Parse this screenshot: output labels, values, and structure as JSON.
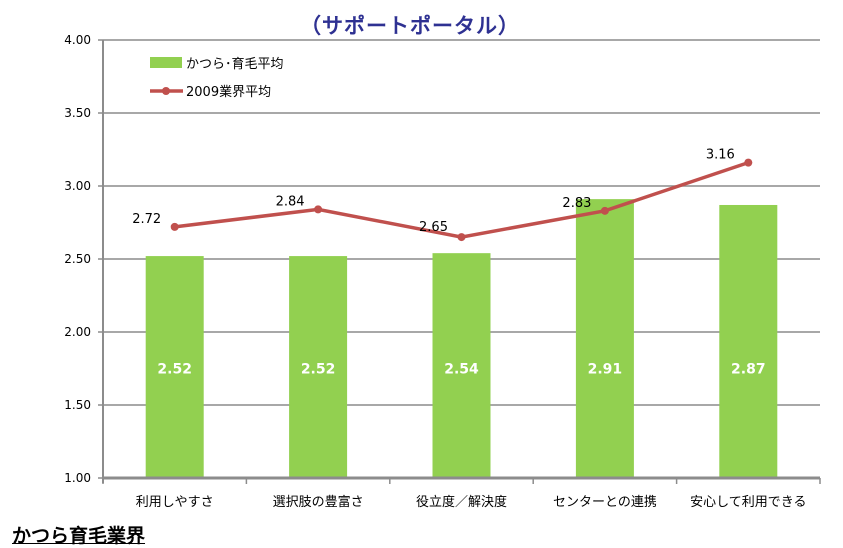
{
  "chart_data": {
    "type": "bar",
    "title": "（サポートポータル）",
    "footer": "かつら育毛業界",
    "categories": [
      "利用しやすさ",
      "選択肢の豊富さ",
      "役立度／解決度",
      "センターとの連携",
      "安心して利用できる"
    ],
    "series": [
      {
        "name": "かつら･育毛平均",
        "kind": "bar",
        "color": "#92d050",
        "values": [
          2.52,
          2.52,
          2.54,
          2.91,
          2.87
        ],
        "labels": [
          "2.52",
          "2.52",
          "2.54",
          "2.91",
          "2.87"
        ]
      },
      {
        "name": "2009業界平均",
        "kind": "line",
        "color": "#c0504d",
        "values": [
          2.72,
          2.84,
          2.65,
          2.83,
          3.16
        ],
        "labels": [
          "2.72",
          "2.84",
          "2.65",
          "2.83",
          "3.16"
        ]
      }
    ],
    "ylim": [
      1.0,
      4.0
    ],
    "yticks": [
      "1.00",
      "1.50",
      "2.00",
      "2.50",
      "3.00",
      "3.50",
      "4.00"
    ],
    "grid": true,
    "legend": "top-left"
  }
}
